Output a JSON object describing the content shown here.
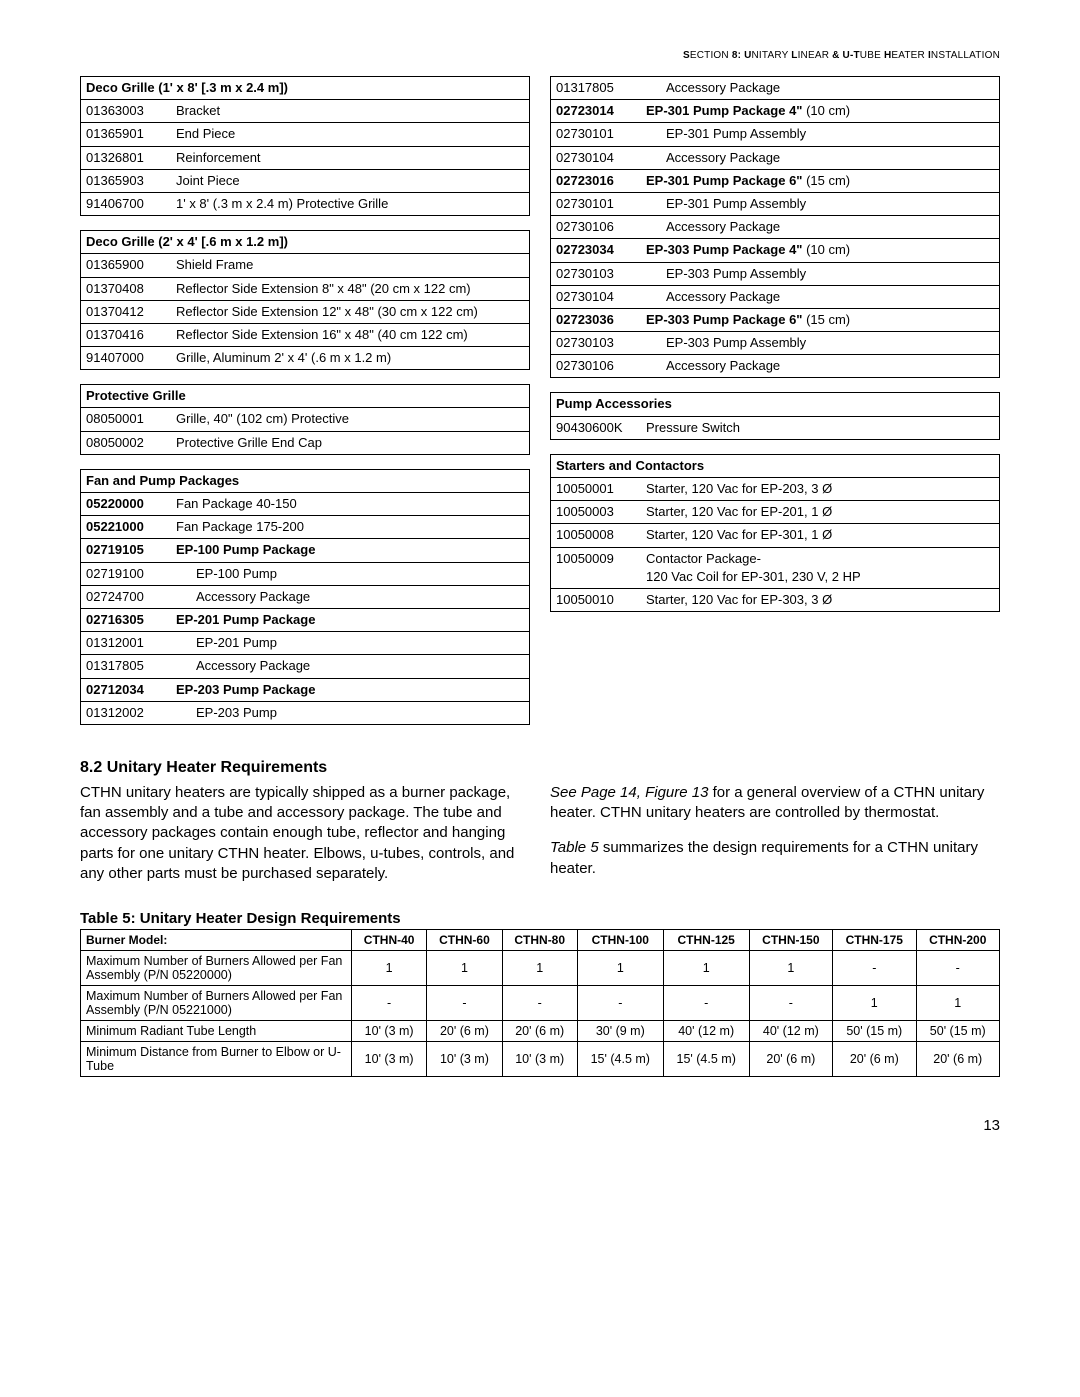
{
  "header": "SECTION 8: UNITARY LINEAR & U-TUBE HEATER INSTALLATION",
  "leftTables": [
    {
      "title": "Deco Grille (1' x 8' [.3 m x 2.4 m])",
      "rows": [
        {
          "code": "01363003",
          "desc": "Bracket"
        },
        {
          "code": "01365901",
          "desc": "End Piece"
        },
        {
          "code": "01326801",
          "desc": "Reinforcement"
        },
        {
          "code": "01365903",
          "desc": "Joint Piece"
        },
        {
          "code": "91406700",
          "desc": "1' x 8' (.3 m x 2.4 m) Protective Grille"
        }
      ]
    },
    {
      "title": "Deco Grille (2' x 4' [.6 m x 1.2 m])",
      "rows": [
        {
          "code": "01365900",
          "desc": "Shield Frame"
        },
        {
          "code": "01370408",
          "desc": "Reflector Side Extension 8\" x 48\" (20 cm x 122 cm)"
        },
        {
          "code": "01370412",
          "desc": "Reflector Side Extension 12\" x 48\" (30 cm x 122 cm)"
        },
        {
          "code": "01370416",
          "desc": "Reflector Side Extension 16\" x 48\" (40 cm 122 cm)"
        },
        {
          "code": "91407000",
          "desc": "Grille, Aluminum 2' x 4' (.6 m x 1.2 m)"
        }
      ]
    },
    {
      "title": "Protective Grille",
      "rows": [
        {
          "code": "08050001",
          "desc": "Grille, 40\" (102 cm) Protective"
        },
        {
          "code": "08050002",
          "desc": "Protective Grille End Cap"
        }
      ]
    },
    {
      "title": "Fan and Pump Packages",
      "rows": [
        {
          "code": "05220000",
          "desc": "Fan Package 40-150",
          "boldCode": true
        },
        {
          "code": "05221000",
          "desc": "Fan Package 175-200",
          "boldCode": true
        },
        {
          "code": "02719105",
          "desc": "EP-100 Pump Package",
          "boldCode": true,
          "boldDesc": true
        },
        {
          "code": "02719100",
          "desc": "EP-100 Pump",
          "indent": true
        },
        {
          "code": "02724700",
          "desc": "Accessory Package",
          "indent": true
        },
        {
          "code": "02716305",
          "desc": "EP-201 Pump Package",
          "boldCode": true,
          "boldDesc": true
        },
        {
          "code": "01312001",
          "desc": "EP-201 Pump",
          "indent": true
        },
        {
          "code": "01317805",
          "desc": "Accessory Package",
          "indent": true
        },
        {
          "code": "02712034",
          "desc": "EP-203 Pump Package",
          "boldCode": true,
          "boldDesc": true
        },
        {
          "code": "01312002",
          "desc": "EP-203 Pump",
          "indent": true
        }
      ]
    }
  ],
  "rightTables": [
    {
      "continuation": true,
      "rows": [
        {
          "code": "01317805",
          "desc": "Accessory Package",
          "indent": true
        },
        {
          "code": "02723014",
          "desc": "EP-301 Pump Package 4\" (10 cm)",
          "boldCode": true,
          "boldPrefix": "EP-301 Pump Package 4\"",
          "suffix": " (10 cm)"
        },
        {
          "code": "02730101",
          "desc": "EP-301 Pump Assembly",
          "indent": true
        },
        {
          "code": "02730104",
          "desc": "Accessory Package",
          "indent": true
        },
        {
          "code": "02723016",
          "desc": "",
          "boldCode": true,
          "boldPrefix": "EP-301 Pump Package 6\"",
          "suffix": " (15 cm)"
        },
        {
          "code": "02730101",
          "desc": "EP-301 Pump Assembly",
          "indent": true
        },
        {
          "code": "02730106",
          "desc": "Accessory Package",
          "indent": true
        },
        {
          "code": "02723034",
          "desc": "",
          "boldCode": true,
          "boldPrefix": "EP-303 Pump Package 4\"",
          "suffix": " (10 cm)"
        },
        {
          "code": "02730103",
          "desc": "EP-303 Pump Assembly",
          "indent": true
        },
        {
          "code": "02730104",
          "desc": "Accessory Package",
          "indent": true
        },
        {
          "code": "02723036",
          "desc": "",
          "boldCode": true,
          "boldPrefix": "EP-303 Pump Package 6\"",
          "suffix": " (15 cm)"
        },
        {
          "code": "02730103",
          "desc": "EP-303 Pump Assembly",
          "indent": true
        },
        {
          "code": "02730106",
          "desc": "Accessory Package",
          "indent": true
        }
      ]
    },
    {
      "title": "Pump Accessories",
      "rows": [
        {
          "code": "90430600K",
          "desc": "Pressure Switch"
        }
      ]
    },
    {
      "title": "Starters and Contactors",
      "rows": [
        {
          "code": "10050001",
          "desc": "Starter, 120 Vac for EP-203, 3 Ø"
        },
        {
          "code": "10050003",
          "desc": "Starter, 120 Vac for EP-201, 1 Ø"
        },
        {
          "code": "10050008",
          "desc": "Starter, 120 Vac for EP-301, 1 Ø"
        },
        {
          "code": "10050009",
          "desc": "Contactor Package-\n120 Vac Coil for EP-301, 230 V, 2 HP"
        },
        {
          "code": "10050010",
          "desc": "Starter, 120 Vac for EP-303, 3 Ø"
        }
      ]
    }
  ],
  "sectionTitle": "8.2 Unitary Heater Requirements",
  "leftPara": "CTHN unitary heaters are typically shipped as a burner package, fan assembly and a tube and accessory package. The tube and accessory packages contain enough tube, reflector and hanging parts for one unitary CTHN heater. Elbows, u-tubes, controls, and any other parts must be purchased separately.",
  "rightPara1_italic": "See Page 14, Figure 13",
  "rightPara1_rest": " for a general overview of a CTHN unitary heater. CTHN unitary heaters are controlled by thermostat.",
  "rightPara2_italic": "Table 5",
  "rightPara2_rest": " summarizes the design requirements for a CTHN unitary heater.",
  "table5Title": "Table 5: Unitary Heater Design Requirements",
  "design": {
    "headerLabel": "Burner Model:",
    "models": [
      "CTHN-40",
      "CTHN-60",
      "CTHN-80",
      "CTHN-100",
      "CTHN-125",
      "CTHN-150",
      "CTHN-175",
      "CTHN-200"
    ],
    "rows": [
      {
        "label": "Maximum Number of Burners Allowed per Fan Assembly (P/N 05220000)",
        "vals": [
          "1",
          "1",
          "1",
          "1",
          "1",
          "1",
          "-",
          "-"
        ]
      },
      {
        "label": "Maximum Number of Burners Allowed per Fan Assembly (P/N 05221000)",
        "vals": [
          "-",
          "-",
          "-",
          "-",
          "-",
          "-",
          "1",
          "1"
        ]
      },
      {
        "label": "Minimum Radiant Tube Length",
        "vals": [
          "10' (3 m)",
          "20' (6 m)",
          "20' (6 m)",
          "30' (9 m)",
          "40' (12 m)",
          "40' (12 m)",
          "50' (15 m)",
          "50' (15 m)"
        ]
      },
      {
        "label": "Minimum Distance from Burner to Elbow or U-Tube",
        "vals": [
          "10' (3 m)",
          "10' (3 m)",
          "10' (3 m)",
          "15' (4.5 m)",
          "15' (4.5 m)",
          "20' (6 m)",
          "20' (6 m)",
          "20' (6 m)"
        ]
      }
    ]
  },
  "pageNum": "13"
}
